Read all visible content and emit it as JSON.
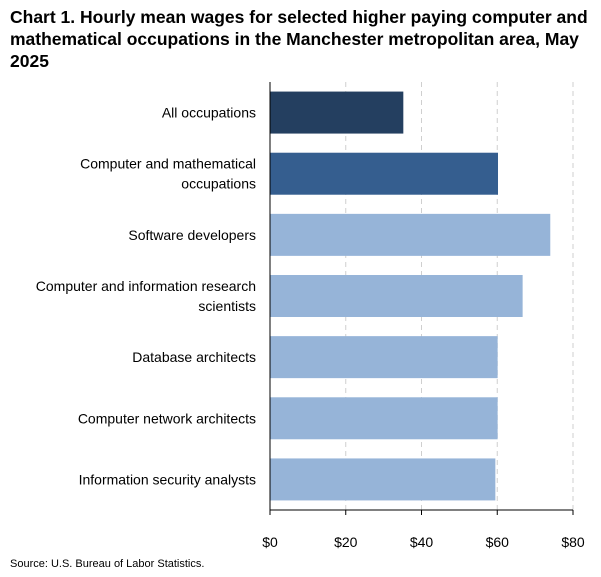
{
  "chart_data": {
    "type": "bar",
    "orientation": "horizontal",
    "title": "Chart 1. Hourly mean wages for selected higher paying computer and mathematical occupations in the Manchester metropolitan area, May 2025",
    "categories": [
      [
        "All occupations"
      ],
      [
        "Computer and mathematical",
        "occupations"
      ],
      [
        "Software developers"
      ],
      [
        "Computer and information research",
        "scientists"
      ],
      [
        "Database architects"
      ],
      [
        "Computer network architects"
      ],
      [
        "Information security analysts"
      ]
    ],
    "values": [
      35.2,
      60.2,
      74.0,
      66.7,
      60.1,
      60.1,
      59.5
    ],
    "bar_colors": [
      "#243f60",
      "#355e8f",
      "#96b4d8",
      "#96b4d8",
      "#96b4d8",
      "#96b4d8",
      "#96b4d8"
    ],
    "xlim": [
      0,
      80
    ],
    "xticks": [
      0,
      20,
      40,
      60,
      80
    ],
    "xtick_labels": [
      "$0",
      "$20",
      "$40",
      "$60",
      "$80"
    ],
    "xlabel": "",
    "ylabel": "",
    "grid": "vertical dashed",
    "legend": "none",
    "source": "Source: U.S. Bureau of Labor Statistics."
  }
}
